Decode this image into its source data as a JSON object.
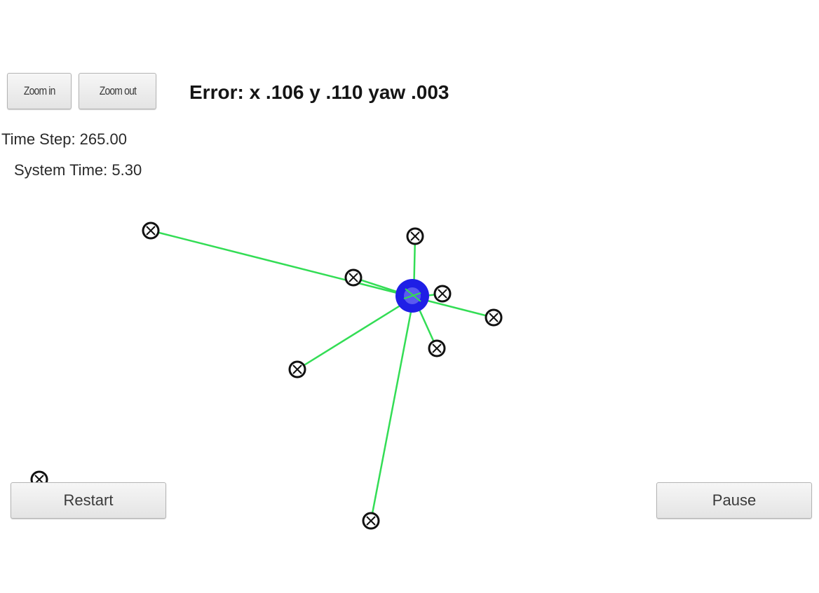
{
  "toolbar": {
    "zoom_in_label": "Zoom in",
    "zoom_out_label": "Zoom out"
  },
  "status": {
    "error_text": "Error: x .106 y .110 yaw .003",
    "time_step_text": "Time Step: 265.00",
    "system_time_text": "System Time: 5.30"
  },
  "controls": {
    "restart_label": "Restart",
    "pause_label": "Pause"
  },
  "icons": {
    "landmark": "circled-x-icon",
    "robot": "robot-disc-icon"
  },
  "colors": {
    "robot": "#1f1fe6",
    "observation_line": "#33dd55",
    "landmark": "#111111"
  }
}
